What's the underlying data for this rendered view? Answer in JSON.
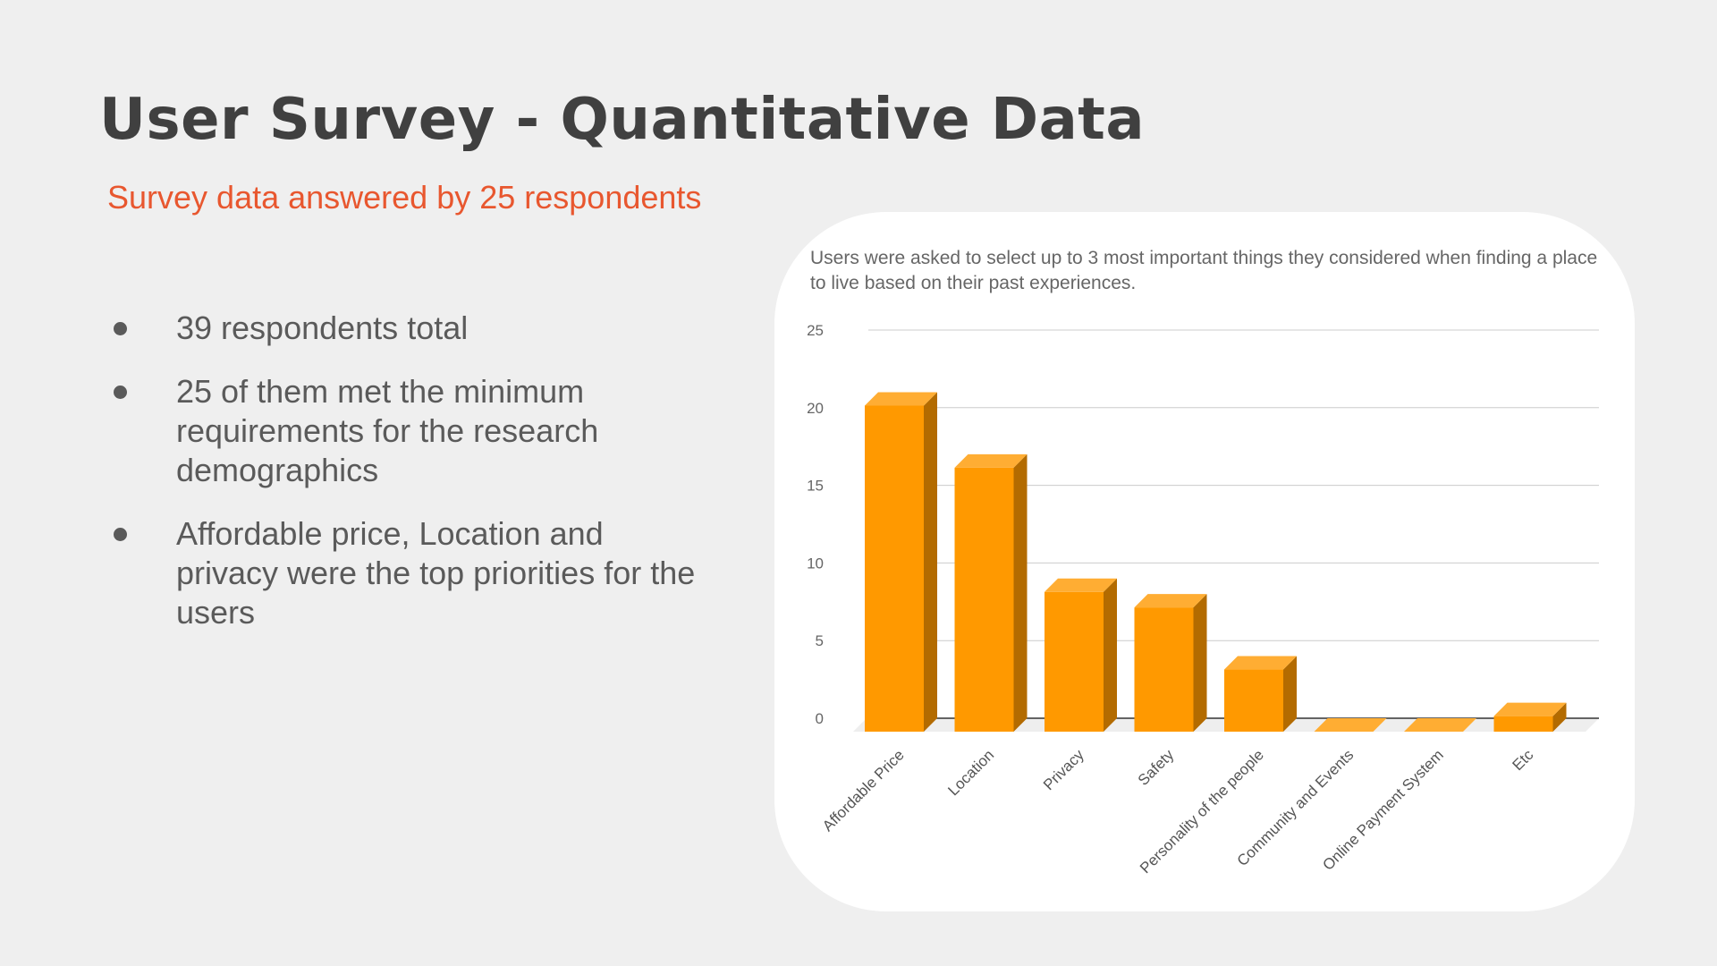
{
  "title": "User Survey - Quantitative Data",
  "subtitle": "Survey data answered by 25 respondents",
  "bullets": [
    "39 respondents total",
    "25 of them met the minimum requirements for the research demographics",
    "Affordable price, Location and privacy were the top priorities for the users"
  ],
  "colors": {
    "background": "#efefef",
    "title": "#404040",
    "subtitle": "#e8572f",
    "bar_front": "#ff9900",
    "bar_top": "#ffad33",
    "bar_side": "#b36b00"
  },
  "chart_data": {
    "type": "bar",
    "title": "Users were asked to select up to 3 most important things they considered when finding a place to live based on their past experiences.",
    "categories": [
      "Affordable Price",
      "Location",
      "Privacy",
      "Safety",
      "Personality of the people",
      "Community and Events",
      "Online Payment System",
      "Etc"
    ],
    "values": [
      21,
      17,
      9,
      8,
      4,
      0,
      0,
      1
    ],
    "ylim": [
      0,
      25
    ],
    "yticks": [
      0,
      5,
      10,
      15,
      20,
      25
    ],
    "grid": true,
    "legend": "none",
    "style": "3d"
  }
}
